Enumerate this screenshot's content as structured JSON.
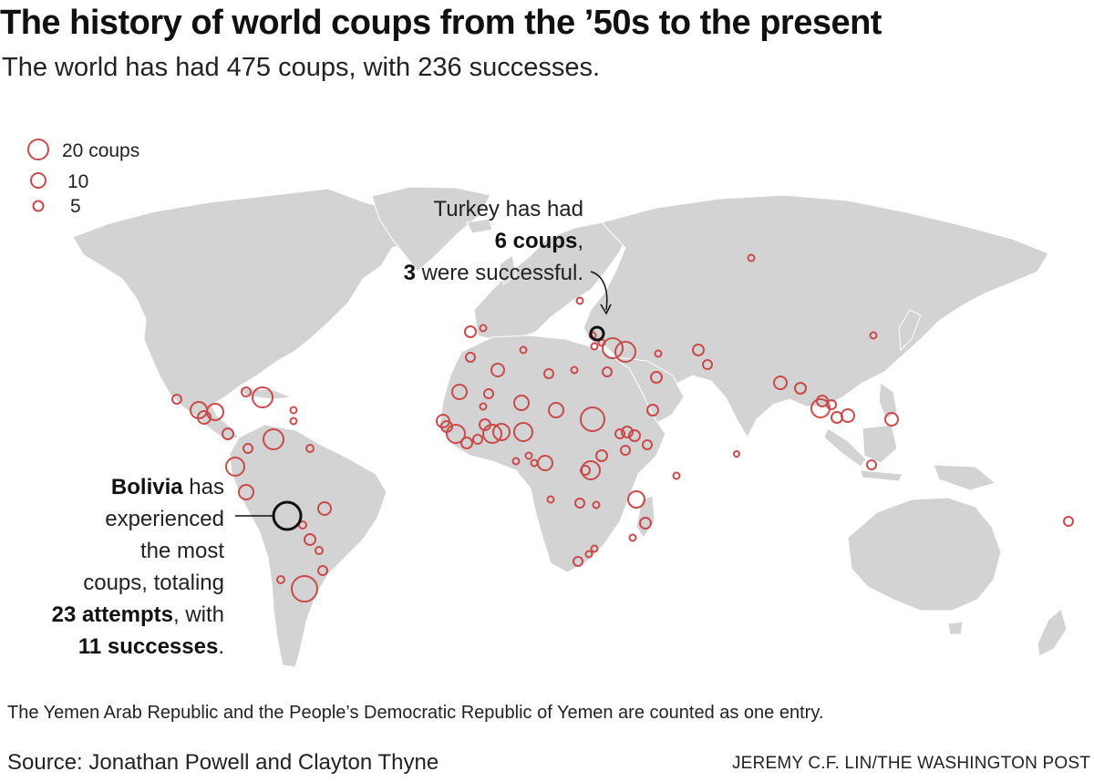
{
  "title": "The history of world coups from the ’50s to the present",
  "subtitle": "The world has had 475 coups, with 236 successes.",
  "legend": [
    {
      "label": "20 coups",
      "value": 20
    },
    {
      "label": "10",
      "value": 10
    },
    {
      "label": "5",
      "value": 5
    }
  ],
  "annotations": {
    "turkey": {
      "l1": "Turkey has had",
      "l2_bold": "6 coups",
      "l2_rest": ",",
      "l3_bold": "3",
      "l3_rest": " were successful."
    },
    "bolivia": {
      "name_bold": "Bolivia",
      "l1_rest": " has",
      "l2": "experienced",
      "l3": "the most",
      "l4": "coups, totaling",
      "l5_bold": "23 attempts",
      "l5_rest": ", with",
      "l6_bold": "11 successes",
      "l6_rest": "."
    }
  },
  "note": "The Yemen Arab Republic and the People’s Democratic Republic of Yemen are counted as one entry.",
  "source": "Source: Jonathan Powell and Clayton Thyne",
  "credit": "JEREMY C.F. LIN/THE WASHINGTON POST",
  "colors": {
    "land": "#d3d3d3",
    "coup_circle": "#c94a4a",
    "highlight": "#111111",
    "border": "#ffffff"
  }
}
